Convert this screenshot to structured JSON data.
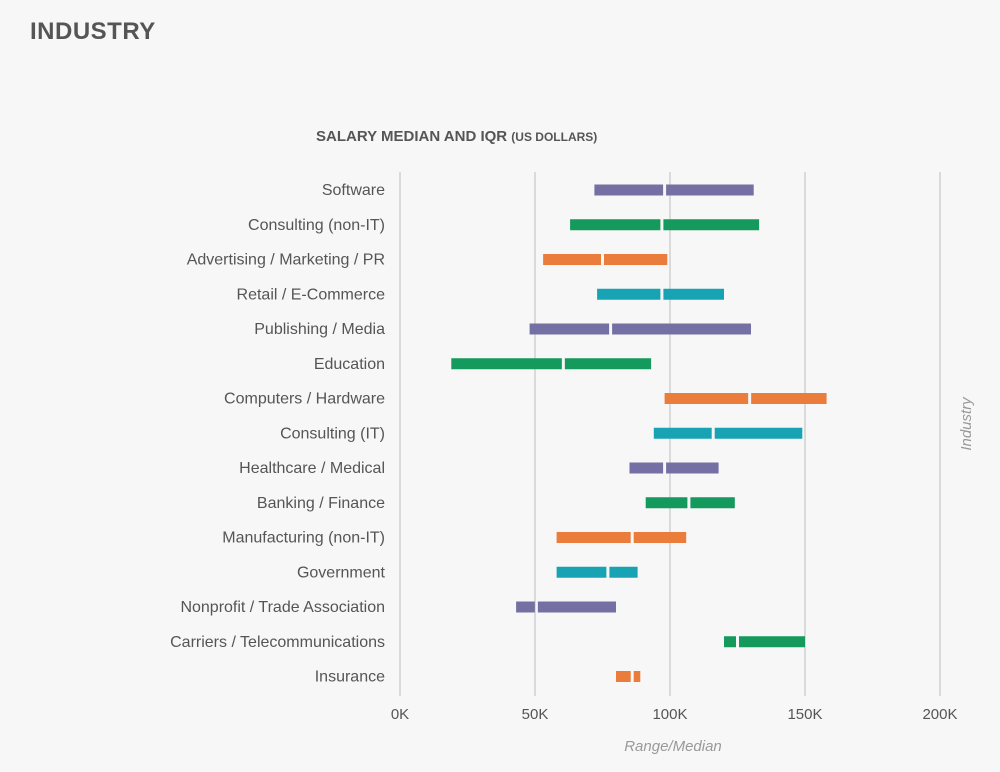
{
  "page_title": "INDUSTRY",
  "chart_heading": "SALARY MEDIAN AND IQR",
  "chart_heading_unit": "(US DOLLARS)",
  "chart_data": {
    "type": "range-bar",
    "title": "SALARY MEDIAN AND IQR (US DOLLARS)",
    "xlabel": "Range/Median",
    "ylabel": "Industry",
    "xlim": [
      0,
      200000
    ],
    "xticks": [
      0,
      50000,
      100000,
      150000,
      200000
    ],
    "xtick_labels": [
      "0K",
      "50K",
      "100K",
      "150K",
      "200K"
    ],
    "grid": "vertical",
    "categories": [
      {
        "name": "Software",
        "low": 72000,
        "median": 98000,
        "high": 131000,
        "color": "#7470a3"
      },
      {
        "name": "Consulting (non-IT)",
        "low": 63000,
        "median": 97000,
        "high": 133000,
        "color": "#149a5c"
      },
      {
        "name": "Advertising / Marketing / PR",
        "low": 53000,
        "median": 75000,
        "high": 99000,
        "color": "#ea7d3c"
      },
      {
        "name": "Retail / E-Commerce",
        "low": 73000,
        "median": 97000,
        "high": 120000,
        "color": "#18a3b5"
      },
      {
        "name": "Publishing / Media",
        "low": 48000,
        "median": 78000,
        "high": 130000,
        "color": "#7470a3"
      },
      {
        "name": "Education",
        "low": 19000,
        "median": 60500,
        "high": 93000,
        "color": "#149a5c"
      },
      {
        "name": "Computers / Hardware",
        "low": 98000,
        "median": 129500,
        "high": 158000,
        "color": "#ea7d3c"
      },
      {
        "name": "Consulting (IT)",
        "low": 94000,
        "median": 116000,
        "high": 149000,
        "color": "#18a3b5"
      },
      {
        "name": "Healthcare / Medical",
        "low": 85000,
        "median": 98000,
        "high": 118000,
        "color": "#7470a3"
      },
      {
        "name": "Banking / Finance",
        "low": 91000,
        "median": 107000,
        "high": 124000,
        "color": "#149a5c"
      },
      {
        "name": "Manufacturing (non-IT)",
        "low": 58000,
        "median": 86000,
        "high": 106000,
        "color": "#ea7d3c"
      },
      {
        "name": "Government",
        "low": 58000,
        "median": 77000,
        "high": 88000,
        "color": "#18a3b5"
      },
      {
        "name": "Nonprofit / Trade Association",
        "low": 43000,
        "median": 50500,
        "high": 80000,
        "color": "#7470a3"
      },
      {
        "name": "Carriers / Telecommunications",
        "low": 120000,
        "median": 125000,
        "high": 150000,
        "color": "#149a5c"
      },
      {
        "name": "Insurance",
        "low": 80000,
        "median": 86000,
        "high": 89000,
        "color": "#ea7d3c"
      }
    ]
  }
}
